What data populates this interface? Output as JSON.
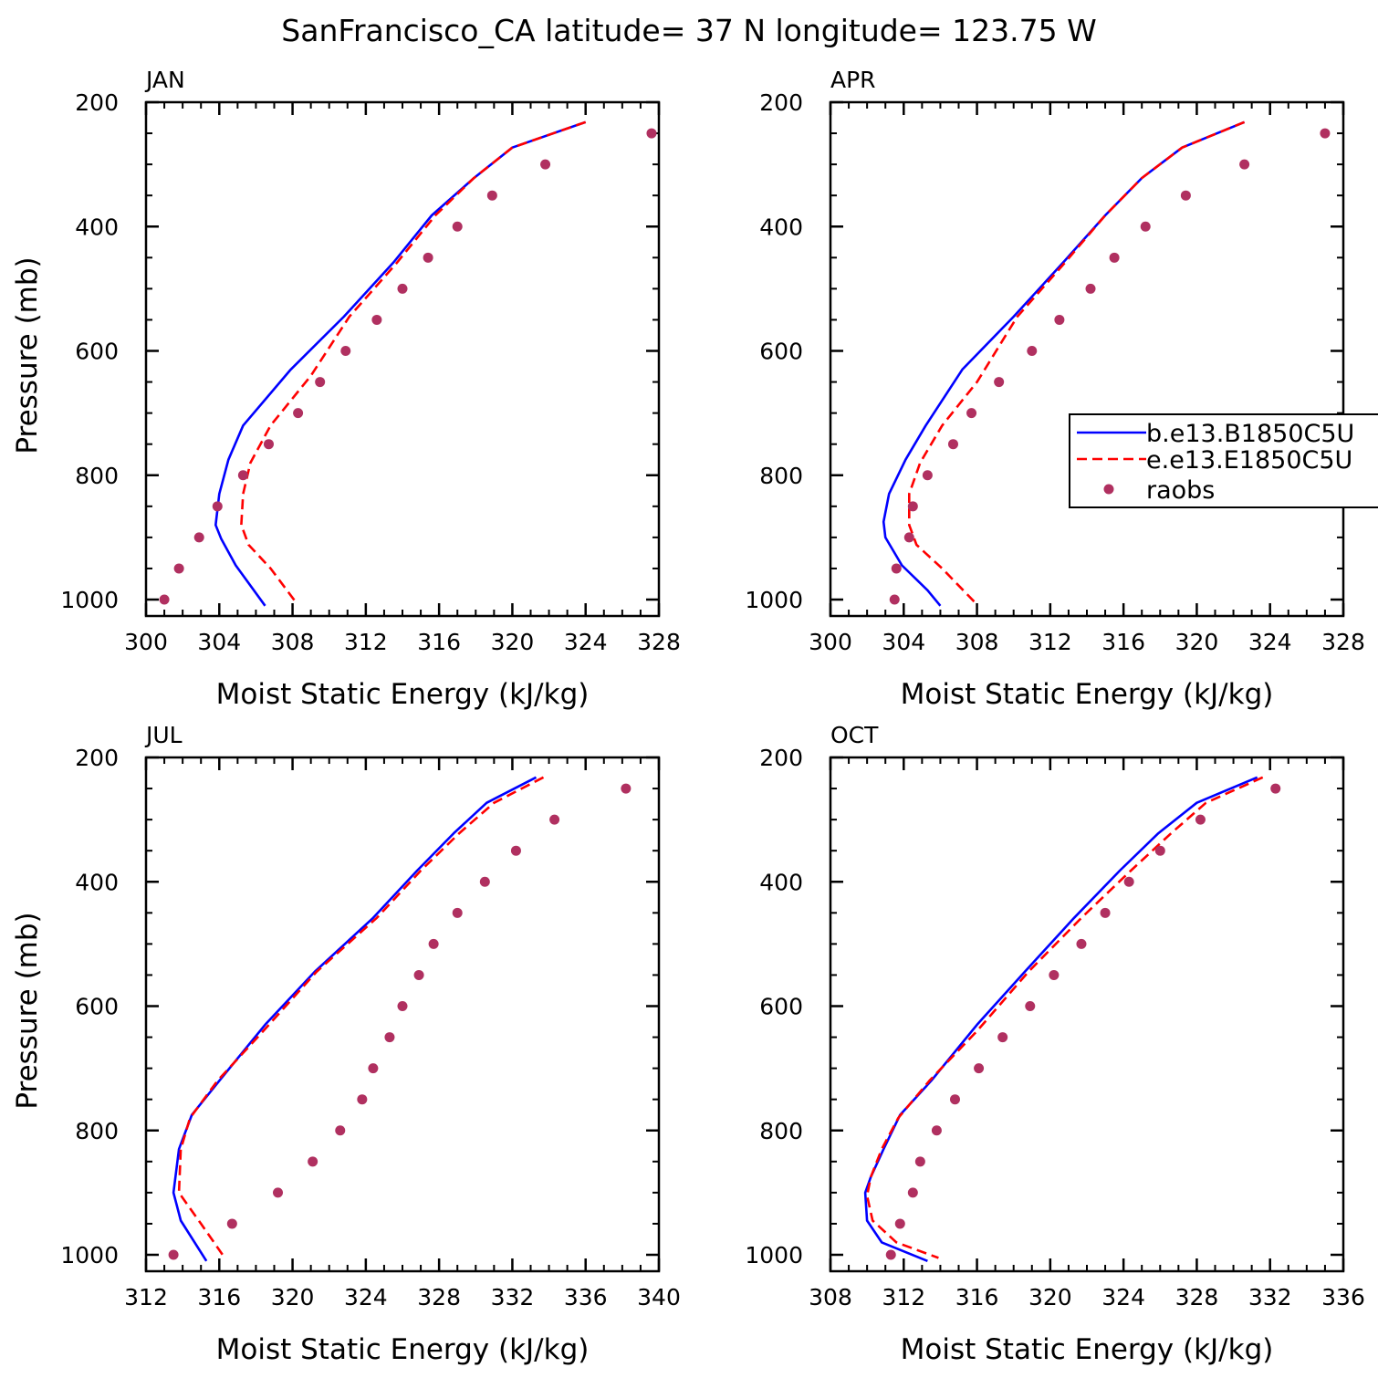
{
  "figure": {
    "title": "SanFrancisco_CA  latitude= 37 N longitude= 123.75 W"
  },
  "legend": {
    "placement": "right-middle, overlapping APR panel",
    "entries": [
      {
        "label": "b.e13.B1850C5U",
        "color": "#0000ff",
        "style": "solid"
      },
      {
        "label": "e.e13.E1850C5U",
        "color": "#ff0000",
        "style": "dashed"
      },
      {
        "label": "raobs",
        "color": "#b03060",
        "style": "marker"
      }
    ]
  },
  "chart_data": [
    {
      "type": "line",
      "title": "JAN",
      "xlabel": "Moist Static Energy (kJ/kg)",
      "ylabel": "Pressure (mb)",
      "xlim": [
        300,
        328
      ],
      "ylim": [
        200,
        1000
      ],
      "y_inverted": true,
      "xticks": [
        "300",
        "304",
        "308",
        "312",
        "316",
        "320",
        "324",
        "328"
      ],
      "yticks": [
        "200",
        "400",
        "600",
        "800",
        "1000"
      ],
      "series": [
        {
          "name": "b.e13.B1850C5U",
          "color": "#0000ff",
          "style": "solid",
          "x": [
            324.0,
            320.0,
            317.9,
            315.6,
            313.5,
            310.8,
            307.9,
            305.3,
            304.5,
            304.0,
            303.8,
            304.1,
            304.9,
            306.5
          ],
          "y": [
            232,
            273,
            322,
            382,
            458,
            545,
            630,
            720,
            775,
            830,
            880,
            902,
            945,
            1010
          ]
        },
        {
          "name": "e.e13.E1850C5U",
          "color": "#ff0000",
          "style": "dashed",
          "x": [
            324.0,
            320.0,
            317.9,
            315.8,
            313.7,
            311.1,
            309.0,
            306.8,
            305.7,
            305.3,
            305.2,
            305.6,
            306.8,
            308.2
          ],
          "y": [
            232,
            273,
            322,
            382,
            458,
            545,
            640,
            720,
            780,
            830,
            880,
            912,
            950,
            1005
          ]
        },
        {
          "name": "raobs",
          "color": "#b03060",
          "style": "marker",
          "x": [
            327.6,
            321.8,
            318.9,
            317.0,
            315.4,
            314.0,
            312.6,
            310.9,
            309.5,
            308.3,
            306.7,
            305.3,
            303.9,
            302.9,
            301.8,
            301.0
          ],
          "y": [
            250,
            300,
            350,
            400,
            450,
            500,
            550,
            600,
            650,
            700,
            750,
            800,
            850,
            900,
            950,
            1000
          ]
        }
      ]
    },
    {
      "type": "line",
      "title": "APR",
      "xlabel": "Moist Static Energy (kJ/kg)",
      "ylabel": "",
      "xlim": [
        300,
        328
      ],
      "ylim": [
        200,
        1000
      ],
      "y_inverted": true,
      "xticks": [
        "300",
        "304",
        "308",
        "312",
        "316",
        "320",
        "324",
        "328"
      ],
      "yticks": [
        "200",
        "400",
        "600",
        "800",
        "1000"
      ],
      "series": [
        {
          "name": "b.e13.B1850C5U",
          "color": "#0000ff",
          "style": "solid",
          "x": [
            322.6,
            319.2,
            317.0,
            315.0,
            312.7,
            310.0,
            307.2,
            305.2,
            304.1,
            303.2,
            302.9,
            303.0,
            303.9,
            305.3,
            306.0
          ],
          "y": [
            232,
            273,
            322,
            382,
            458,
            545,
            630,
            720,
            775,
            830,
            875,
            900,
            945,
            985,
            1010
          ]
        },
        {
          "name": "e.e13.E1850C5U",
          "color": "#ff0000",
          "style": "dashed",
          "x": [
            322.6,
            319.2,
            317.0,
            315.0,
            312.8,
            310.2,
            308.0,
            306.1,
            304.9,
            304.3,
            304.3,
            304.7,
            306.1,
            307.9
          ],
          "y": [
            232,
            273,
            322,
            382,
            458,
            545,
            650,
            720,
            780,
            830,
            880,
            912,
            950,
            1005
          ]
        },
        {
          "name": "raobs",
          "color": "#b03060",
          "style": "marker",
          "x": [
            327.0,
            322.6,
            319.4,
            317.2,
            315.5,
            314.2,
            312.5,
            311.0,
            309.2,
            307.7,
            306.7,
            305.3,
            304.5,
            304.3,
            303.6,
            303.5
          ],
          "y": [
            250,
            300,
            350,
            400,
            450,
            500,
            550,
            600,
            650,
            700,
            750,
            800,
            850,
            900,
            950,
            1000
          ]
        }
      ]
    },
    {
      "type": "line",
      "title": "JUL",
      "xlabel": "Moist Static Energy (kJ/kg)",
      "ylabel": "Pressure (mb)",
      "xlim": [
        312,
        340
      ],
      "ylim": [
        200,
        1000
      ],
      "y_inverted": true,
      "xticks": [
        "312",
        "316",
        "320",
        "324",
        "328",
        "332",
        "336",
        "340"
      ],
      "yticks": [
        "200",
        "400",
        "600",
        "800",
        "1000"
      ],
      "series": [
        {
          "name": "b.e13.B1850C5U",
          "color": "#0000ff",
          "style": "solid",
          "x": [
            333.3,
            330.6,
            328.8,
            326.8,
            324.4,
            321.2,
            318.5,
            316.0,
            314.5,
            313.8,
            313.5,
            313.9,
            315.3
          ],
          "y": [
            232,
            273,
            322,
            382,
            458,
            545,
            630,
            720,
            775,
            830,
            900,
            945,
            1010
          ]
        },
        {
          "name": "e.e13.E1850C5U",
          "color": "#ff0000",
          "style": "dashed",
          "x": [
            333.7,
            331.0,
            329.1,
            327.0,
            324.6,
            321.3,
            318.4,
            315.9,
            314.4,
            313.9,
            313.8,
            315.0,
            316.3
          ],
          "y": [
            232,
            273,
            322,
            382,
            458,
            545,
            640,
            720,
            780,
            830,
            900,
            950,
            1005
          ]
        },
        {
          "name": "raobs",
          "color": "#b03060",
          "style": "marker",
          "x": [
            338.2,
            334.3,
            332.2,
            330.5,
            329.0,
            327.7,
            326.9,
            326.0,
            325.3,
            324.4,
            323.8,
            322.6,
            321.1,
            319.2,
            316.7,
            313.5
          ],
          "y": [
            250,
            300,
            350,
            400,
            450,
            500,
            550,
            600,
            650,
            700,
            750,
            800,
            850,
            900,
            950,
            1000
          ]
        }
      ]
    },
    {
      "type": "line",
      "title": "OCT",
      "xlabel": "Moist Static Energy (kJ/kg)",
      "ylabel": "",
      "xlim": [
        308,
        336
      ],
      "ylim": [
        200,
        1000
      ],
      "y_inverted": true,
      "xticks": [
        "308",
        "312",
        "316",
        "320",
        "324",
        "328",
        "332",
        "336"
      ],
      "yticks": [
        "200",
        "400",
        "600",
        "800",
        "1000"
      ],
      "series": [
        {
          "name": "b.e13.B1850C5U",
          "color": "#0000ff",
          "style": "solid",
          "x": [
            331.3,
            328.0,
            325.9,
            323.8,
            321.3,
            318.6,
            316.0,
            313.5,
            311.8,
            310.9,
            310.2,
            309.9,
            310.0,
            310.8,
            313.3
          ],
          "y": [
            232,
            273,
            322,
            382,
            458,
            545,
            630,
            720,
            775,
            830,
            875,
            900,
            945,
            980,
            1010
          ]
        },
        {
          "name": "e.e13.E1850C5U",
          "color": "#ff0000",
          "style": "dashed",
          "x": [
            331.6,
            328.5,
            326.6,
            324.4,
            321.7,
            318.8,
            316.0,
            313.4,
            311.7,
            310.8,
            310.2,
            310.0,
            310.3,
            311.6,
            313.9
          ],
          "y": [
            232,
            273,
            322,
            382,
            458,
            545,
            640,
            720,
            780,
            830,
            875,
            905,
            945,
            980,
            1005
          ]
        },
        {
          "name": "raobs",
          "color": "#b03060",
          "style": "marker",
          "x": [
            332.3,
            328.2,
            326.0,
            324.3,
            323.0,
            321.7,
            320.2,
            318.9,
            317.4,
            316.1,
            314.8,
            313.8,
            312.9,
            312.5,
            311.8,
            311.3
          ],
          "y": [
            250,
            300,
            350,
            400,
            450,
            500,
            550,
            600,
            650,
            700,
            750,
            800,
            850,
            900,
            950,
            1000
          ]
        }
      ]
    }
  ]
}
